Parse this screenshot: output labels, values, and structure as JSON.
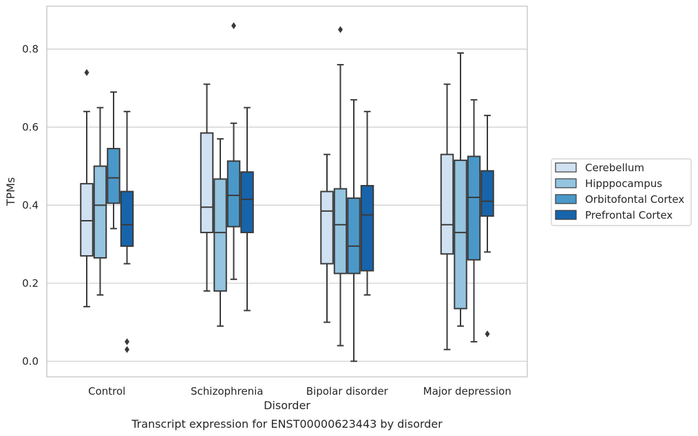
{
  "caption": "Transcript expression for ENST00000623443 by disorder",
  "colors": {
    "Cerebellum": "#d0e1f2",
    "Hipppocampus": "#94c4df",
    "Orbitofontal Cortex": "#4a98c9",
    "Prefrontal Cortex": "#1764ab",
    "edge": "#3a3a3a",
    "grid": "#cccccc",
    "frame": "#cccccc"
  },
  "chart_data": {
    "type": "box",
    "xlabel": "Disorder",
    "ylabel": "TPMs",
    "ylim": [
      -0.04,
      0.91
    ],
    "yticks": [
      0.0,
      0.2,
      0.4,
      0.6,
      0.8
    ],
    "ytick_labels": [
      "0.0",
      "0.2",
      "0.4",
      "0.6",
      "0.8"
    ],
    "grid": "horizontal",
    "legend_position": "right",
    "categories": [
      "Control",
      "Schizophrenia",
      "Bipolar disorder",
      "Major depression"
    ],
    "series": [
      {
        "name": "Cerebellum",
        "boxes": [
          {
            "whislo": 0.14,
            "q1": 0.27,
            "med": 0.36,
            "q3": 0.455,
            "whishi": 0.64,
            "fliers": [
              0.74
            ]
          },
          {
            "whislo": 0.18,
            "q1": 0.33,
            "med": 0.395,
            "q3": 0.585,
            "whishi": 0.71,
            "fliers": []
          },
          {
            "whislo": 0.1,
            "q1": 0.25,
            "med": 0.385,
            "q3": 0.435,
            "whishi": 0.53,
            "fliers": []
          },
          {
            "whislo": 0.03,
            "q1": 0.275,
            "med": 0.35,
            "q3": 0.53,
            "whishi": 0.71,
            "fliers": []
          }
        ]
      },
      {
        "name": "Hipppocampus",
        "boxes": [
          {
            "whislo": 0.17,
            "q1": 0.265,
            "med": 0.4,
            "q3": 0.5,
            "whishi": 0.65,
            "fliers": []
          },
          {
            "whislo": 0.09,
            "q1": 0.18,
            "med": 0.33,
            "q3": 0.467,
            "whishi": 0.57,
            "fliers": []
          },
          {
            "whislo": 0.04,
            "q1": 0.225,
            "med": 0.35,
            "q3": 0.442,
            "whishi": 0.76,
            "fliers": [
              0.85
            ]
          },
          {
            "whislo": 0.09,
            "q1": 0.135,
            "med": 0.33,
            "q3": 0.515,
            "whishi": 0.79,
            "fliers": []
          }
        ]
      },
      {
        "name": "Orbitofontal Cortex",
        "boxes": [
          {
            "whislo": 0.34,
            "q1": 0.405,
            "med": 0.47,
            "q3": 0.545,
            "whishi": 0.69,
            "fliers": []
          },
          {
            "whislo": 0.21,
            "q1": 0.345,
            "med": 0.425,
            "q3": 0.513,
            "whishi": 0.61,
            "fliers": [
              0.86
            ]
          },
          {
            "whislo": 0.0,
            "q1": 0.225,
            "med": 0.295,
            "q3": 0.418,
            "whishi": 0.67,
            "fliers": []
          },
          {
            "whislo": 0.05,
            "q1": 0.26,
            "med": 0.42,
            "q3": 0.525,
            "whishi": 0.67,
            "fliers": []
          }
        ]
      },
      {
        "name": "Prefrontal Cortex",
        "boxes": [
          {
            "whislo": 0.25,
            "q1": 0.295,
            "med": 0.35,
            "q3": 0.435,
            "whishi": 0.64,
            "fliers": [
              0.03,
              0.05
            ]
          },
          {
            "whislo": 0.13,
            "q1": 0.33,
            "med": 0.415,
            "q3": 0.485,
            "whishi": 0.65,
            "fliers": []
          },
          {
            "whislo": 0.17,
            "q1": 0.232,
            "med": 0.375,
            "q3": 0.45,
            "whishi": 0.64,
            "fliers": []
          },
          {
            "whislo": 0.28,
            "q1": 0.372,
            "med": 0.41,
            "q3": 0.488,
            "whishi": 0.63,
            "fliers": [
              0.07
            ]
          }
        ]
      }
    ]
  }
}
